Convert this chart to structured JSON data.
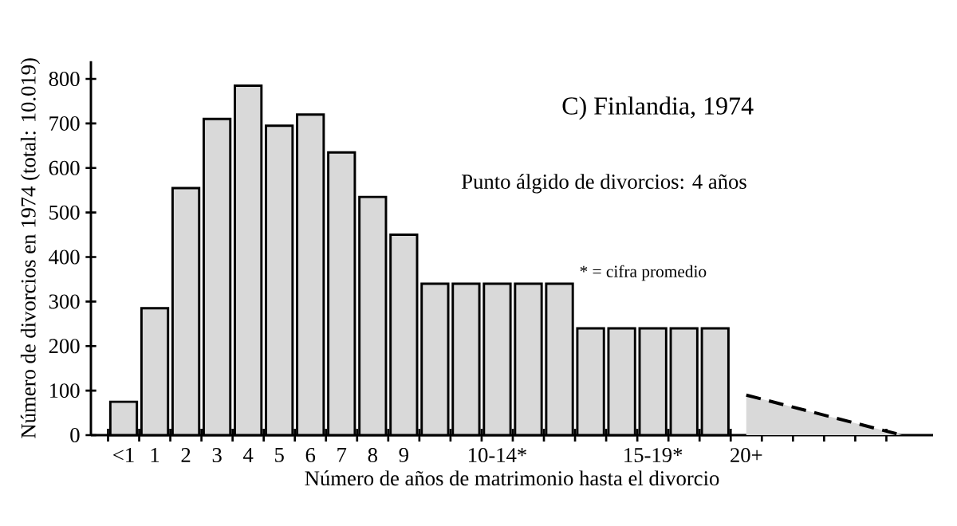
{
  "chart_data": {
    "type": "bar",
    "title": "C) Finlandia, 1974",
    "xlabel": "Número de años de matrimonio hasta el divorcio",
    "ylabel": "Número de divorcios en 1974 (total: 10.019)",
    "categories": [
      "<1",
      "1",
      "2",
      "3",
      "4",
      "5",
      "6",
      "7",
      "8",
      "9",
      null,
      null,
      "10-14*",
      null,
      null,
      null,
      null,
      "15-19*",
      null,
      null,
      "20+",
      null,
      null,
      null,
      null,
      null
    ],
    "series": [
      {
        "color": "#d9d9d9",
        "values": [
          75,
          285,
          555,
          710,
          785,
          695,
          720,
          635,
          535,
          450,
          340,
          340,
          340,
          340,
          340,
          240,
          240,
          240,
          240,
          240,
          null,
          null,
          null,
          null,
          null,
          null
        ]
      },
      {
        "type": "area",
        "color": "#d9d9d9",
        "line_style": "dashed",
        "values": [
          null,
          null,
          null,
          null,
          null,
          null,
          null,
          null,
          null,
          null,
          null,
          null,
          null,
          null,
          null,
          null,
          null,
          null,
          null,
          null,
          90,
          null,
          null,
          null,
          null,
          0
        ]
      }
    ],
    "ylim": [
      0,
      840
    ],
    "yticks": [
      0,
      100,
      200,
      300,
      400,
      500,
      600,
      700,
      800
    ],
    "annotations": [
      "Punto álgido de divorcios: 4 años",
      "* = cifra promedio"
    ]
  }
}
